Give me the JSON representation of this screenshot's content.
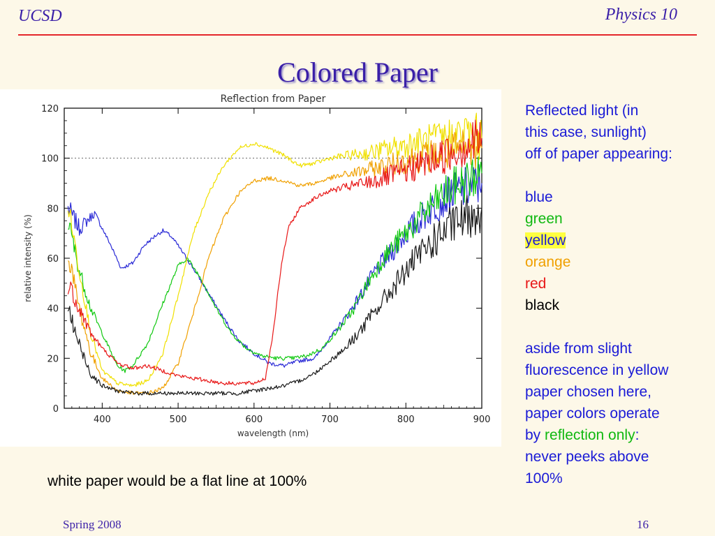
{
  "header": {
    "left": "UCSD",
    "right": "Physics 10"
  },
  "title": "Colored Paper",
  "chart_data": {
    "type": "line",
    "title": "Reflection from Paper",
    "xlabel": "wavelength (nm)",
    "ylabel": "relative intensity (%)",
    "xlim": [
      350,
      900
    ],
    "ylim": [
      0,
      120
    ],
    "xticks": [
      "400",
      "500",
      "600",
      "700",
      "800",
      "900"
    ],
    "yticks": [
      "0",
      "20",
      "40",
      "60",
      "80",
      "100",
      "120"
    ],
    "grid": false,
    "reference_line": {
      "y": 100,
      "style": "dotted"
    },
    "series": [
      {
        "color": "#2a2ad6",
        "points": [
          [
            355,
            80
          ],
          [
            370,
            72
          ],
          [
            390,
            78
          ],
          [
            410,
            66
          ],
          [
            425,
            56
          ],
          [
            440,
            58
          ],
          [
            455,
            65
          ],
          [
            470,
            69
          ],
          [
            480,
            71
          ],
          [
            490,
            69
          ],
          [
            500,
            65
          ],
          [
            520,
            56
          ],
          [
            540,
            46
          ],
          [
            560,
            36
          ],
          [
            580,
            27
          ],
          [
            600,
            22
          ],
          [
            620,
            18
          ],
          [
            640,
            17
          ],
          [
            660,
            19
          ],
          [
            680,
            20
          ],
          [
            700,
            28
          ],
          [
            720,
            36
          ],
          [
            740,
            45
          ],
          [
            760,
            55
          ],
          [
            780,
            62
          ],
          [
            800,
            70
          ],
          [
            830,
            79
          ],
          [
            860,
            86
          ],
          [
            900,
            90
          ]
        ]
      },
      {
        "color": "#10c810",
        "points": [
          [
            355,
            75
          ],
          [
            370,
            55
          ],
          [
            385,
            40
          ],
          [
            400,
            30
          ],
          [
            420,
            17
          ],
          [
            430,
            15
          ],
          [
            440,
            17
          ],
          [
            460,
            26
          ],
          [
            480,
            42
          ],
          [
            500,
            57
          ],
          [
            512,
            60
          ],
          [
            530,
            52
          ],
          [
            550,
            40
          ],
          [
            570,
            30
          ],
          [
            590,
            24
          ],
          [
            610,
            21
          ],
          [
            630,
            20
          ],
          [
            650,
            20
          ],
          [
            670,
            21
          ],
          [
            690,
            24
          ],
          [
            710,
            31
          ],
          [
            730,
            39
          ],
          [
            750,
            50
          ],
          [
            770,
            60
          ],
          [
            800,
            70
          ],
          [
            830,
            80
          ],
          [
            860,
            88
          ],
          [
            900,
            94
          ]
        ]
      },
      {
        "color": "#f0e000",
        "points": [
          [
            355,
            82
          ],
          [
            370,
            55
          ],
          [
            385,
            30
          ],
          [
            400,
            15
          ],
          [
            420,
            10
          ],
          [
            440,
            9
          ],
          [
            460,
            11
          ],
          [
            480,
            22
          ],
          [
            500,
            45
          ],
          [
            520,
            70
          ],
          [
            540,
            86
          ],
          [
            560,
            97
          ],
          [
            580,
            104
          ],
          [
            600,
            106
          ],
          [
            620,
            104
          ],
          [
            640,
            101
          ],
          [
            660,
            97
          ],
          [
            680,
            98
          ],
          [
            700,
            100
          ],
          [
            720,
            101
          ],
          [
            750,
            102
          ],
          [
            780,
            104
          ],
          [
            810,
            106
          ],
          [
            850,
            108
          ],
          [
            880,
            110
          ],
          [
            900,
            108
          ]
        ]
      },
      {
        "color": "#f0a000",
        "points": [
          [
            355,
            62
          ],
          [
            370,
            40
          ],
          [
            385,
            22
          ],
          [
            400,
            12
          ],
          [
            420,
            7
          ],
          [
            440,
            6
          ],
          [
            460,
            6
          ],
          [
            480,
            8
          ],
          [
            500,
            18
          ],
          [
            520,
            38
          ],
          [
            540,
            60
          ],
          [
            560,
            76
          ],
          [
            580,
            86
          ],
          [
            600,
            91
          ],
          [
            620,
            92
          ],
          [
            640,
            91
          ],
          [
            660,
            89
          ],
          [
            680,
            90
          ],
          [
            700,
            92
          ],
          [
            730,
            94
          ],
          [
            760,
            96
          ],
          [
            800,
            99
          ],
          [
            850,
            102
          ],
          [
            900,
            104
          ]
        ]
      },
      {
        "color": "#e81818",
        "points": [
          [
            355,
            50
          ],
          [
            370,
            40
          ],
          [
            385,
            30
          ],
          [
            400,
            24
          ],
          [
            420,
            18
          ],
          [
            440,
            16
          ],
          [
            460,
            17
          ],
          [
            480,
            15
          ],
          [
            500,
            13
          ],
          [
            520,
            12
          ],
          [
            540,
            11
          ],
          [
            560,
            10
          ],
          [
            580,
            10
          ],
          [
            600,
            10
          ],
          [
            615,
            12
          ],
          [
            625,
            30
          ],
          [
            635,
            55
          ],
          [
            645,
            72
          ],
          [
            660,
            80
          ],
          [
            680,
            84
          ],
          [
            700,
            87
          ],
          [
            730,
            89
          ],
          [
            760,
            91
          ],
          [
            800,
            95
          ],
          [
            850,
            101
          ],
          [
            900,
            108
          ]
        ]
      },
      {
        "color": "#1a1a1a",
        "points": [
          [
            355,
            40
          ],
          [
            370,
            25
          ],
          [
            385,
            14
          ],
          [
            400,
            9
          ],
          [
            420,
            7
          ],
          [
            440,
            6
          ],
          [
            460,
            6
          ],
          [
            480,
            6
          ],
          [
            500,
            6
          ],
          [
            520,
            6
          ],
          [
            540,
            6
          ],
          [
            560,
            6
          ],
          [
            580,
            6
          ],
          [
            600,
            7
          ],
          [
            620,
            8
          ],
          [
            640,
            9
          ],
          [
            660,
            11
          ],
          [
            680,
            14
          ],
          [
            700,
            19
          ],
          [
            720,
            24
          ],
          [
            740,
            31
          ],
          [
            760,
            39
          ],
          [
            780,
            47
          ],
          [
            800,
            55
          ],
          [
            830,
            65
          ],
          [
            860,
            73
          ],
          [
            900,
            80
          ]
        ]
      }
    ]
  },
  "sidebar": {
    "intro": [
      "Reflected light (in",
      "this case, sunlight)",
      "off of paper appearing:"
    ],
    "colors": {
      "blue": {
        "label": "blue",
        "color": "#1a1ad6"
      },
      "green": {
        "label": "green",
        "color": "#10b810"
      },
      "yellow": {
        "label": "yellow",
        "color": "#1a1ad6",
        "highlight": "#ffff40"
      },
      "orange": {
        "label": "orange",
        "color": "#f0a000"
      },
      "red": {
        "label": "red",
        "color": "#e81818"
      },
      "black": {
        "label": "black",
        "color": "#000000"
      }
    },
    "note_lines": [
      "aside from slight",
      "fluorescence in yellow",
      "paper chosen here,",
      "paper colors operate"
    ],
    "note_by": "by ",
    "note_emph": "reflection only",
    "note_colon": ":",
    "note_tail": [
      "never peeks above",
      "100%"
    ]
  },
  "caption": "white paper would be a flat line at 100%",
  "footer": {
    "left": "Spring 2008",
    "right": "16"
  }
}
